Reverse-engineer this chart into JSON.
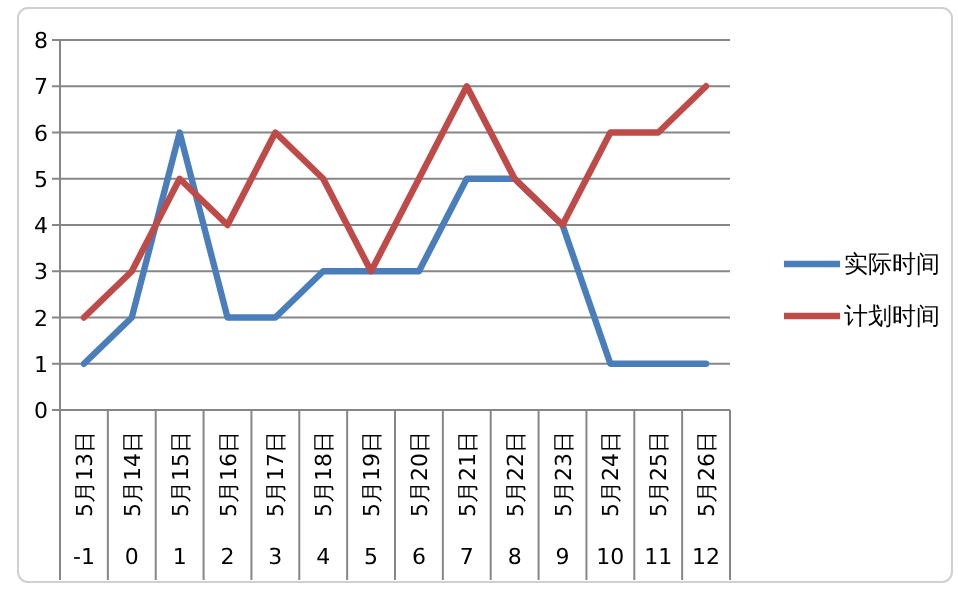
{
  "chart_data": {
    "type": "line",
    "categories": [
      "5月13日",
      "5月14日",
      "5月15日",
      "5月16日",
      "5月17日",
      "5月18日",
      "5月19日",
      "5月20日",
      "5月21日",
      "5月22日",
      "5月23日",
      "5月24日",
      "5月25日",
      "5月26日"
    ],
    "series": [
      {
        "name": "实际时间",
        "color": "#4a7ebb",
        "values": [
          1,
          2,
          6,
          2,
          2,
          3,
          3,
          3,
          5,
          5,
          4,
          1,
          1,
          1
        ]
      },
      {
        "name": "计划时间",
        "color": "#be4b48",
        "values": [
          2,
          3,
          5,
          4,
          6,
          5,
          3,
          5,
          7,
          5,
          4,
          6,
          6,
          7
        ]
      }
    ],
    "annotations": [
      "-1",
      "0",
      "1",
      "2",
      "3",
      "4",
      "5",
      "6",
      "7",
      "8",
      "9",
      "10",
      "11",
      "12"
    ],
    "ylim": [
      0,
      8
    ],
    "yticks": [
      0,
      1,
      2,
      3,
      4,
      5,
      6,
      7,
      8
    ],
    "grid": "y",
    "legend": "right",
    "marker": "none",
    "line_style": "solid"
  }
}
